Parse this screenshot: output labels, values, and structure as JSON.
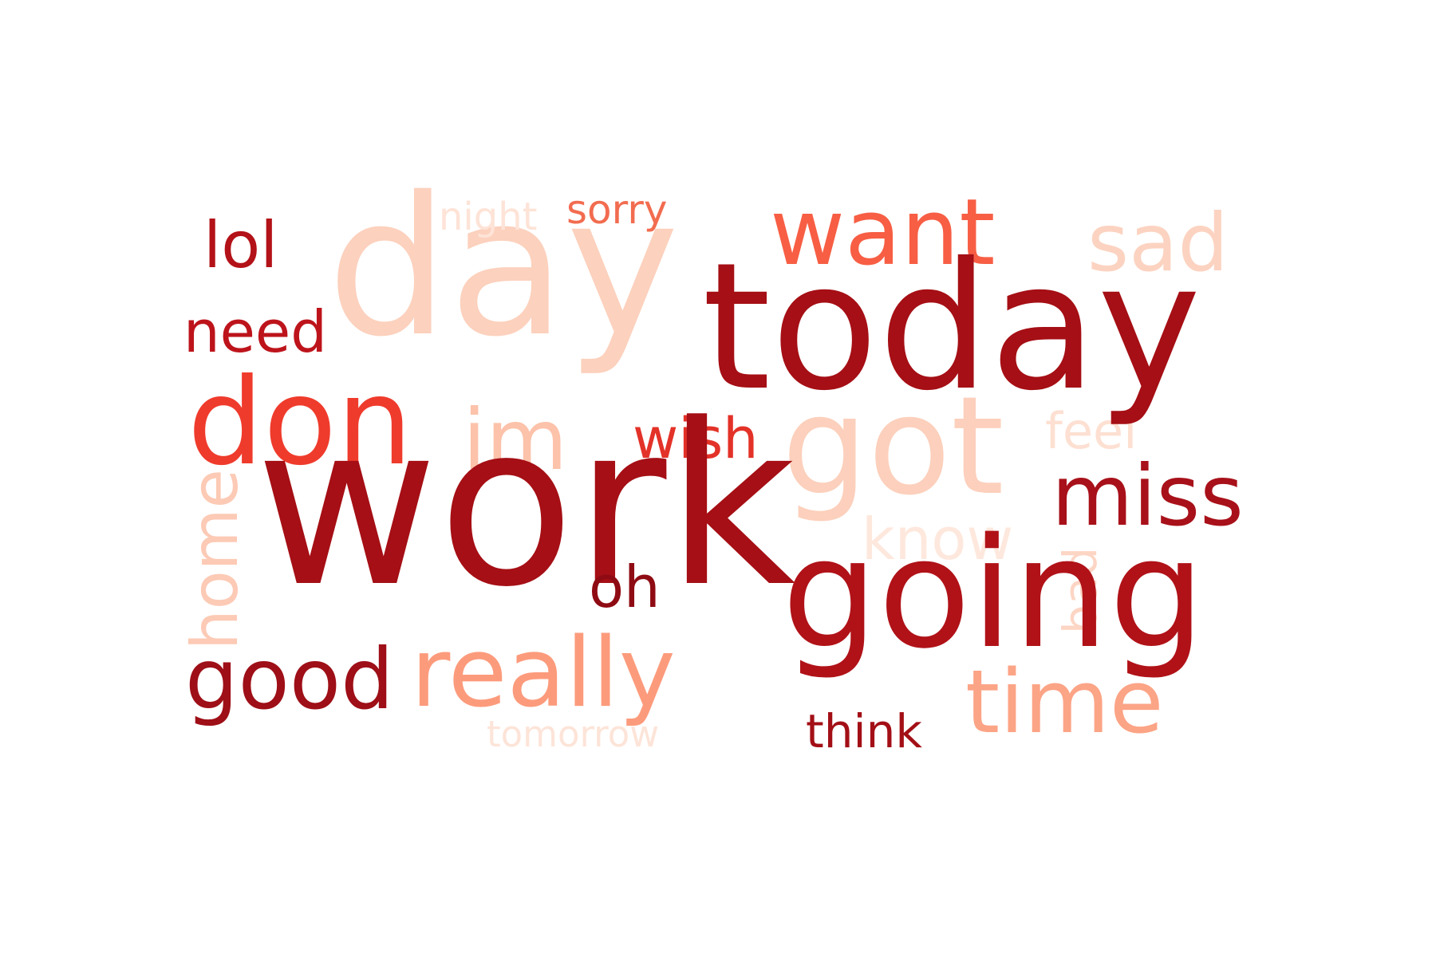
{
  "words": {
    "work": {
      "text": "work",
      "color": "#a50f15"
    },
    "today": {
      "text": "today",
      "color": "#a50f15"
    },
    "day": {
      "text": "day",
      "color": "#fcd1bd"
    },
    "going": {
      "text": "going",
      "color": "#b01218"
    },
    "got": {
      "text": "got",
      "color": "#fcd0bc"
    },
    "don": {
      "text": "don",
      "color": "#ef3b2c"
    },
    "want": {
      "text": "want",
      "color": "#f75e44"
    },
    "really": {
      "text": "really",
      "color": "#fc9b7c"
    },
    "time": {
      "text": "time",
      "color": "#fca486"
    },
    "miss": {
      "text": "miss",
      "color": "#a8111a"
    },
    "good": {
      "text": "good",
      "color": "#9e0f17"
    },
    "im": {
      "text": "im",
      "color": "#fcc2aa"
    },
    "sad": {
      "text": "sad",
      "color": "#fcd3c1"
    },
    "lol": {
      "text": "lol",
      "color": "#b31218"
    },
    "need": {
      "text": "need",
      "color": "#bd141b"
    },
    "oh": {
      "text": "oh",
      "color": "#8f0b13"
    },
    "wish": {
      "text": "wish",
      "color": "#e33228"
    },
    "know": {
      "text": "know",
      "color": "#fee8dd"
    },
    "think": {
      "text": "think",
      "color": "#a30f16"
    },
    "feel": {
      "text": "feel",
      "color": "#fde0d2"
    },
    "sorry": {
      "text": "sorry",
      "color": "#f26c4f"
    },
    "night": {
      "text": "night",
      "color": "#fee3d7"
    },
    "tomorrow": {
      "text": "tomorrow",
      "color": "#fde4d8"
    },
    "home": {
      "text": "home",
      "color": "#fccab5"
    },
    "bad": {
      "text": "bad",
      "color": "#fdd5c4"
    }
  }
}
